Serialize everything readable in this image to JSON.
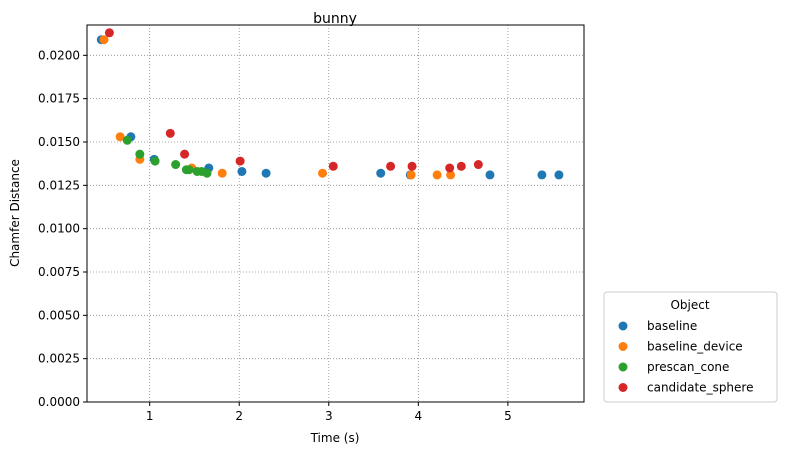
{
  "chart_data": {
    "type": "scatter",
    "title": "bunny",
    "xlabel": "Time (s)",
    "ylabel": "Chamfer Distance",
    "xlim": [
      0.3,
      5.85
    ],
    "ylim": [
      0.0,
      0.02175
    ],
    "xticks": [
      1,
      2,
      3,
      4,
      5
    ],
    "yticks": [
      0.0,
      0.0025,
      0.005,
      0.0075,
      0.01,
      0.0125,
      0.015,
      0.0175,
      0.02
    ],
    "ytick_labels": [
      "0.0000",
      "0.0025",
      "0.0050",
      "0.0075",
      "0.0100",
      "0.0125",
      "0.0150",
      "0.0175",
      "0.0200"
    ],
    "grid": true,
    "legend": {
      "title": "Object",
      "placement": "outside-lower-right"
    },
    "series": [
      {
        "name": "baseline",
        "color": "#1f77b4",
        "points": [
          [
            0.46,
            0.0209
          ],
          [
            0.79,
            0.0153
          ],
          [
            1.05,
            0.014
          ],
          [
            1.66,
            0.0135
          ],
          [
            2.03,
            0.0133
          ],
          [
            2.3,
            0.0132
          ],
          [
            3.58,
            0.0132
          ],
          [
            3.91,
            0.0131
          ],
          [
            4.8,
            0.0131
          ],
          [
            5.38,
            0.0131
          ],
          [
            5.57,
            0.0131
          ]
        ]
      },
      {
        "name": "baseline_device",
        "color": "#ff7f0e",
        "points": [
          [
            0.49,
            0.0209
          ],
          [
            0.67,
            0.0153
          ],
          [
            0.89,
            0.014
          ],
          [
            1.47,
            0.0135
          ],
          [
            1.81,
            0.0132
          ],
          [
            2.93,
            0.0132
          ],
          [
            3.92,
            0.0131
          ],
          [
            4.21,
            0.0131
          ],
          [
            4.36,
            0.0131
          ]
        ]
      },
      {
        "name": "prescan_cone",
        "color": "#2ca02c",
        "points": [
          [
            0.75,
            0.0151
          ],
          [
            0.89,
            0.0143
          ],
          [
            1.06,
            0.0139
          ],
          [
            1.29,
            0.0137
          ],
          [
            1.41,
            0.0134
          ],
          [
            1.44,
            0.0134
          ],
          [
            1.53,
            0.0133
          ],
          [
            1.58,
            0.0133
          ],
          [
            1.64,
            0.0132
          ]
        ]
      },
      {
        "name": "candidate_sphere",
        "color": "#d62728",
        "points": [
          [
            0.55,
            0.0213
          ],
          [
            1.23,
            0.0155
          ],
          [
            1.39,
            0.0143
          ],
          [
            2.01,
            0.0139
          ],
          [
            3.05,
            0.0136
          ],
          [
            3.69,
            0.0136
          ],
          [
            3.93,
            0.0136
          ],
          [
            4.35,
            0.0135
          ],
          [
            4.48,
            0.0136
          ],
          [
            4.67,
            0.0137
          ]
        ]
      }
    ]
  }
}
